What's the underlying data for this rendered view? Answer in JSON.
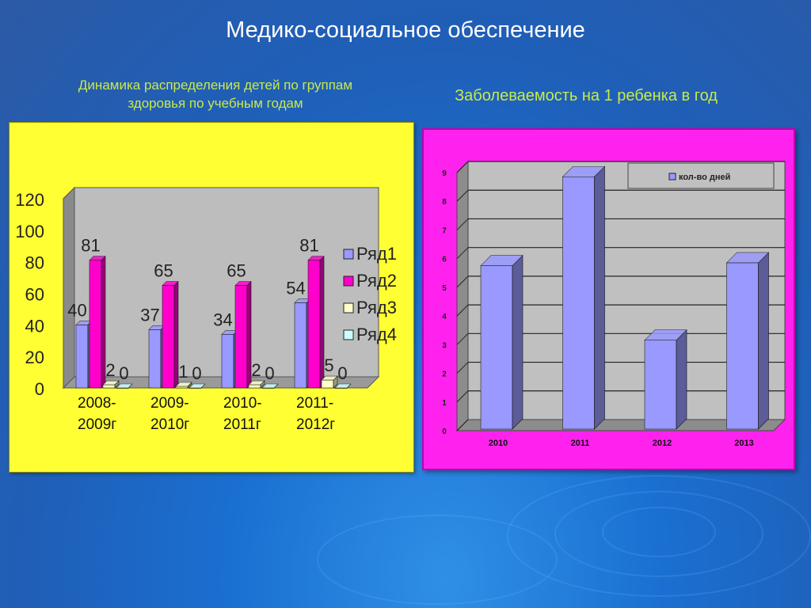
{
  "slide": {
    "title": "Медико-социальное обеспечение",
    "left_subtitle": "Динамика распределения детей по группам здоровья по учебным годам",
    "right_subtitle": "Заболеваемость на 1 ребенка в год"
  },
  "colors": {
    "left_panel": "#ffff33",
    "right_panel": "#ff22ee",
    "series_blue": "#9999ff",
    "series_magenta": "#ff00cc",
    "series_cream": "#ffffcc",
    "series_cyan": "#ccffff",
    "title_text": "#ffffff",
    "subtitle_text": "#c9e94a"
  },
  "chart_data": [
    {
      "type": "bar",
      "title": "Динамика распределения детей по группам здоровья по учебным годам",
      "categories": [
        "2008-2009г",
        "2009-2010г",
        "2010-2011г",
        "2011-2012г"
      ],
      "series": [
        {
          "name": "Ряд1",
          "values": [
            40,
            37,
            34,
            54
          ]
        },
        {
          "name": "Ряд2",
          "values": [
            81,
            65,
            65,
            81
          ]
        },
        {
          "name": "Ряд3",
          "values": [
            2,
            1,
            2,
            5
          ]
        },
        {
          "name": "Ряд4",
          "values": [
            0,
            0,
            0,
            0
          ]
        }
      ],
      "ylim": [
        0,
        120
      ],
      "yticks": [
        0,
        20,
        40,
        60,
        80,
        100,
        120
      ],
      "legend": "right",
      "grid": false
    },
    {
      "type": "bar",
      "title": "Заболеваемость на 1 ребенка в год",
      "categories": [
        "2010",
        "2011",
        "2012",
        "2013"
      ],
      "series": [
        {
          "name": "кол-во дней",
          "values": [
            5.7,
            8.8,
            3.1,
            5.8
          ]
        }
      ],
      "ylim": [
        0,
        9
      ],
      "yticks": [
        0,
        1,
        2,
        3,
        4,
        5,
        6,
        7,
        8,
        9
      ],
      "legend": "top-right",
      "grid": true
    }
  ]
}
